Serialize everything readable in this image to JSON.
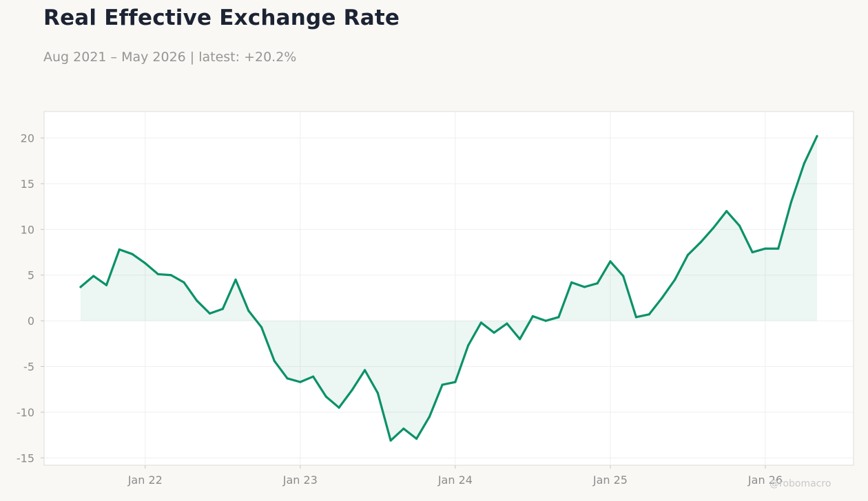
{
  "header": {
    "title": "Real Effective Exchange Rate",
    "subtitle": "Aug 2021 – May 2026 | latest: +20.2%"
  },
  "watermark": "@robomacro",
  "colors": {
    "line": "#0b9168",
    "fill": "#0b9168",
    "background": "#f9f8f5",
    "plot_background": "#ffffff",
    "grid": "#efefef",
    "frame": "#dedbd3"
  },
  "chart_data": {
    "type": "area",
    "title": "Real Effective Exchange Rate",
    "xlabel": "",
    "ylabel": "",
    "ylim": [
      -15.8,
      22.9
    ],
    "yticks": [
      -15,
      -10,
      -5,
      0,
      5,
      10,
      15,
      20
    ],
    "ytick_labels": [
      "-15",
      "-10",
      "-5",
      "0",
      "5",
      "10",
      "15",
      "20"
    ],
    "xticks": [
      "2022-01",
      "2023-01",
      "2024-01",
      "2025-01",
      "2026-01"
    ],
    "xtick_labels": [
      "Jan 22",
      "Jan 23",
      "Jan 24",
      "Jan 25",
      "Jan 26"
    ],
    "grid": true,
    "legend": "none",
    "series": [
      {
        "x": [
          "2021-08",
          "2021-09",
          "2021-10",
          "2021-11",
          "2021-12",
          "2022-01",
          "2022-02",
          "2022-03",
          "2022-04",
          "2022-05",
          "2022-06",
          "2022-07",
          "2022-08",
          "2022-09",
          "2022-10",
          "2022-11",
          "2022-12",
          "2023-01",
          "2023-02",
          "2023-03",
          "2023-04",
          "2023-05",
          "2023-06",
          "2023-07",
          "2023-08",
          "2023-09",
          "2023-10",
          "2023-11",
          "2023-12",
          "2024-01",
          "2024-02",
          "2024-03",
          "2024-04",
          "2024-05",
          "2024-06",
          "2024-07",
          "2024-08",
          "2024-09",
          "2024-10",
          "2024-11",
          "2024-12",
          "2025-01",
          "2025-02",
          "2025-03",
          "2025-04",
          "2025-05",
          "2025-06",
          "2025-07",
          "2025-08",
          "2025-09",
          "2025-10",
          "2025-11",
          "2025-12",
          "2026-01",
          "2026-02",
          "2026-03",
          "2026-04",
          "2026-05"
        ],
        "values": [
          3.7,
          4.9,
          3.9,
          7.8,
          7.3,
          6.3,
          5.1,
          5.0,
          4.2,
          2.2,
          0.8,
          1.3,
          4.5,
          1.1,
          -0.7,
          -4.4,
          -6.3,
          -6.7,
          -6.1,
          -8.3,
          -9.5,
          -7.6,
          -5.4,
          -7.9,
          -13.1,
          -11.8,
          -12.9,
          -10.5,
          -7.0,
          -6.7,
          -2.7,
          -0.2,
          -1.3,
          -0.3,
          -2.0,
          0.5,
          0.0,
          0.4,
          4.2,
          3.7,
          4.1,
          6.5,
          4.9,
          0.4,
          0.7,
          2.5,
          4.5,
          7.2,
          8.6,
          10.2,
          12.0,
          10.4,
          7.5,
          7.9,
          7.9,
          13.0,
          17.2,
          20.2
        ]
      }
    ]
  }
}
